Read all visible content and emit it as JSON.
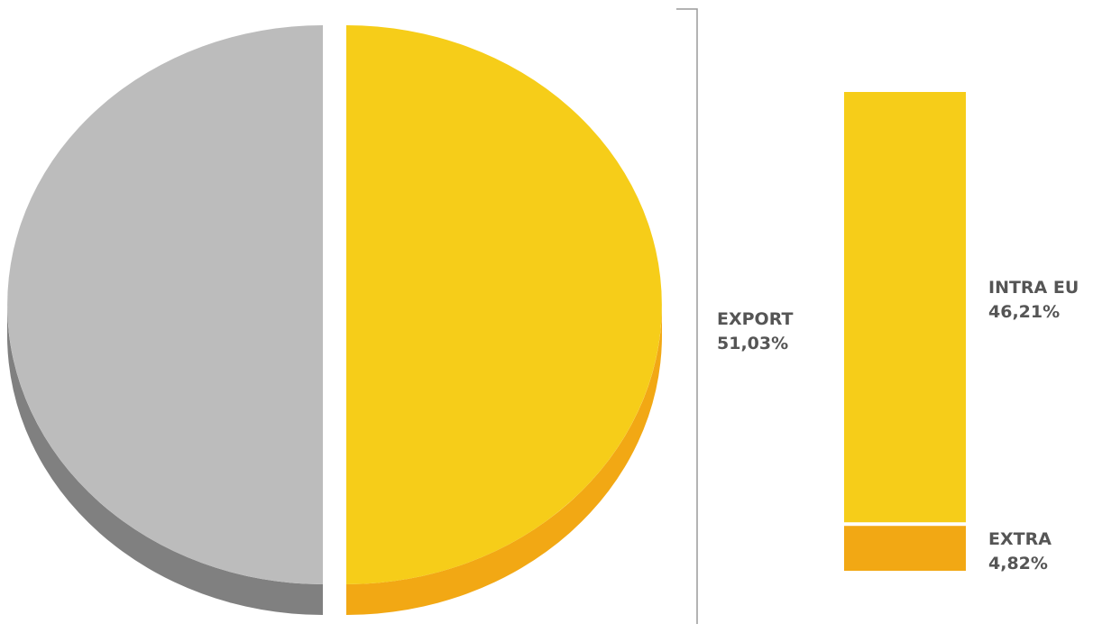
{
  "chart_data": {
    "type": "pie",
    "slices": [
      {
        "label": "",
        "value": 48.97,
        "color": "#bcbcbc",
        "side_color": "#808080"
      },
      {
        "label": "EXPORT",
        "value": 51.03,
        "value_text": "51,03%",
        "color": "#f6cd19",
        "side_color": "#f2a814"
      }
    ],
    "breakdown": {
      "type": "stacked-bar",
      "parent": "EXPORT",
      "segments": [
        {
          "label": "INTRA EU",
          "value": 46.21,
          "value_text": "46,21%",
          "color": "#f6cd19"
        },
        {
          "label": "EXTRA",
          "value": 4.82,
          "value_text": "4,82%",
          "color": "#f2a814"
        }
      ]
    }
  }
}
